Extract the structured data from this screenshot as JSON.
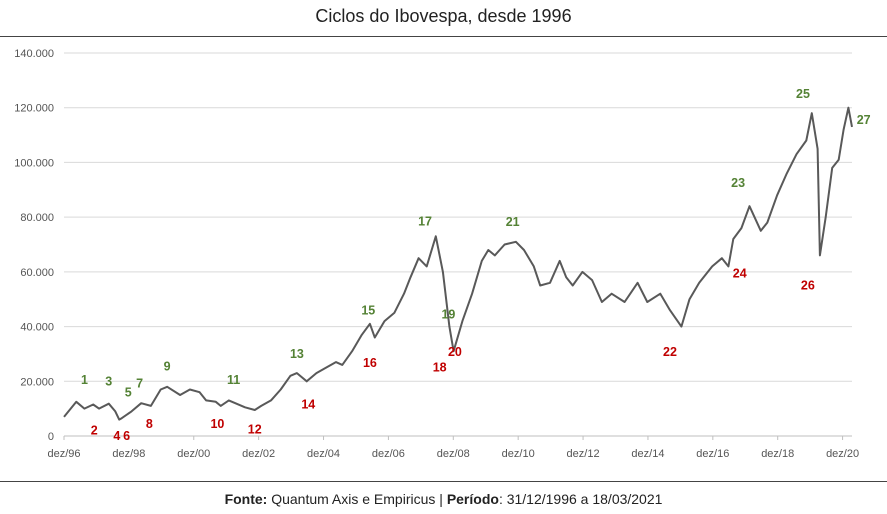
{
  "title": "Ciclos do Ibovespa, desde 1996",
  "footer": {
    "source_label": "Fonte:",
    "source_value": " Quantum Axis e Empiricus | ",
    "period_label": "Período",
    "period_value": ": 31/12/1996 a 18/03/2021"
  },
  "colors": {
    "line": "#595959",
    "peak": "#548235",
    "trough": "#c00000",
    "grid": "#d9d9d9"
  },
  "chart_data": {
    "type": "line",
    "title": "Ciclos do Ibovespa, desde 1996",
    "xlabel": "",
    "ylabel": "",
    "ylim": [
      0,
      140000
    ],
    "grid": true,
    "y_ticks": [
      0,
      20000,
      40000,
      60000,
      80000,
      100000,
      120000,
      140000
    ],
    "y_tick_labels": [
      "0",
      "20.000",
      "40.000",
      "60.000",
      "80.000",
      "100.000",
      "120.000",
      "140.000"
    ],
    "x_tick_labels": [
      "dez/96",
      "dez/98",
      "dez/00",
      "dez/02",
      "dez/04",
      "dez/06",
      "dez/08",
      "dez/10",
      "dez/12",
      "dez/14",
      "dez/16",
      "dez/18",
      "dez/20"
    ],
    "x_ticks": [
      1996.92,
      1998.92,
      2000.92,
      2002.92,
      2004.92,
      2006.92,
      2008.92,
      2010.92,
      2012.92,
      2014.92,
      2016.92,
      2018.92,
      2020.92
    ],
    "xlim": [
      1996.92,
      2021.21
    ],
    "series": [
      {
        "x": [
          1996.92,
          1997.3,
          1997.55,
          1997.82,
          1998.0,
          1998.3,
          1998.5,
          1998.62,
          1998.7,
          1999.0,
          1999.3,
          1999.6,
          1999.9,
          2000.1,
          2000.5,
          2000.8,
          2001.1,
          2001.3,
          2001.6,
          2001.75,
          2002.0,
          2002.2,
          2002.5,
          2002.8,
          2003.0,
          2003.3,
          2003.6,
          2003.9,
          2004.1,
          2004.4,
          2004.7,
          2005.0,
          2005.3,
          2005.5,
          2005.8,
          2006.1,
          2006.35,
          2006.5,
          2006.8,
          2007.1,
          2007.4,
          2007.6,
          2007.85,
          2008.1,
          2008.38,
          2008.6,
          2008.8,
          2008.93,
          2009.2,
          2009.5,
          2009.8,
          2010.0,
          2010.2,
          2010.5,
          2010.85,
          2011.1,
          2011.4,
          2011.6,
          2011.9,
          2012.2,
          2012.4,
          2012.6,
          2012.9,
          2013.2,
          2013.5,
          2013.8,
          2014.2,
          2014.6,
          2014.9,
          2015.3,
          2015.6,
          2015.95,
          2016.2,
          2016.5,
          2016.9,
          2017.2,
          2017.4,
          2017.55,
          2017.8,
          2018.05,
          2018.4,
          2018.6,
          2018.9,
          2019.2,
          2019.5,
          2019.8,
          2019.97,
          2020.15,
          2020.22,
          2020.4,
          2020.6,
          2020.8,
          2020.95,
          2021.1,
          2021.21
        ],
        "values": [
          7000,
          12500,
          10000,
          11500,
          10000,
          11800,
          9000,
          6000,
          6500,
          9000,
          12000,
          11000,
          17000,
          18000,
          15000,
          17000,
          16000,
          13000,
          12500,
          11000,
          13000,
          12000,
          10500,
          9500,
          11000,
          13000,
          17000,
          22000,
          23000,
          20000,
          23000,
          25000,
          27000,
          26000,
          31000,
          37000,
          41000,
          36000,
          42000,
          45000,
          52000,
          58000,
          65000,
          62000,
          73000,
          60000,
          40000,
          31000,
          42000,
          52000,
          64000,
          68000,
          66000,
          70000,
          71000,
          68000,
          62000,
          55000,
          56000,
          64000,
          58000,
          55000,
          60000,
          57000,
          49000,
          52000,
          49000,
          56000,
          49000,
          52000,
          46000,
          40000,
          50000,
          56000,
          62000,
          65000,
          62000,
          72000,
          76000,
          84000,
          75000,
          78000,
          88000,
          96000,
          103000,
          108000,
          118000,
          105000,
          66000,
          80000,
          98000,
          101000,
          112000,
          120000,
          113000
        ]
      }
    ],
    "annotations": [
      {
        "label": "1",
        "x": 1997.55,
        "y": 19000,
        "type": "peak"
      },
      {
        "label": "2",
        "x": 1997.85,
        "y": 500,
        "type": "trough"
      },
      {
        "label": "3",
        "x": 1998.3,
        "y": 18400,
        "type": "peak"
      },
      {
        "label": "4",
        "x": 1998.55,
        "y": -1500,
        "type": "trough"
      },
      {
        "label": "6",
        "x": 1998.85,
        "y": -1500,
        "type": "trough"
      },
      {
        "label": "5",
        "x": 1998.9,
        "y": 14500,
        "type": "peak"
      },
      {
        "label": "7",
        "x": 1999.25,
        "y": 17800,
        "type": "peak"
      },
      {
        "label": "8",
        "x": 1999.55,
        "y": 3000,
        "type": "trough"
      },
      {
        "label": "9",
        "x": 2000.1,
        "y": 24000,
        "type": "peak"
      },
      {
        "label": "10",
        "x": 2001.65,
        "y": 3000,
        "type": "trough"
      },
      {
        "label": "11",
        "x": 2002.15,
        "y": 19000,
        "type": "peak"
      },
      {
        "label": "12",
        "x": 2002.8,
        "y": 1000,
        "type": "trough"
      },
      {
        "label": "13",
        "x": 2004.1,
        "y": 28500,
        "type": "peak"
      },
      {
        "label": "14",
        "x": 2004.45,
        "y": 10000,
        "type": "trough"
      },
      {
        "label": "15",
        "x": 2006.3,
        "y": 44500,
        "type": "peak"
      },
      {
        "label": "16",
        "x": 2006.35,
        "y": 25300,
        "type": "trough"
      },
      {
        "label": "17",
        "x": 2008.05,
        "y": 77000,
        "type": "peak"
      },
      {
        "label": "18",
        "x": 2008.5,
        "y": 23500,
        "type": "trough"
      },
      {
        "label": "19",
        "x": 2008.77,
        "y": 43000,
        "type": "peak"
      },
      {
        "label": "20",
        "x": 2008.97,
        "y": 29300,
        "type": "trough"
      },
      {
        "label": "21",
        "x": 2010.75,
        "y": 76800,
        "type": "peak"
      },
      {
        "label": "22",
        "x": 2015.6,
        "y": 29300,
        "type": "trough"
      },
      {
        "label": "23",
        "x": 2017.7,
        "y": 91000,
        "type": "peak"
      },
      {
        "label": "24",
        "x": 2017.75,
        "y": 58000,
        "type": "trough"
      },
      {
        "label": "25",
        "x": 2019.7,
        "y": 123500,
        "type": "peak"
      },
      {
        "label": "26",
        "x": 2019.85,
        "y": 53500,
        "type": "trough"
      },
      {
        "label": "27",
        "x": 2021.57,
        "y": 114000,
        "type": "peak"
      }
    ]
  }
}
